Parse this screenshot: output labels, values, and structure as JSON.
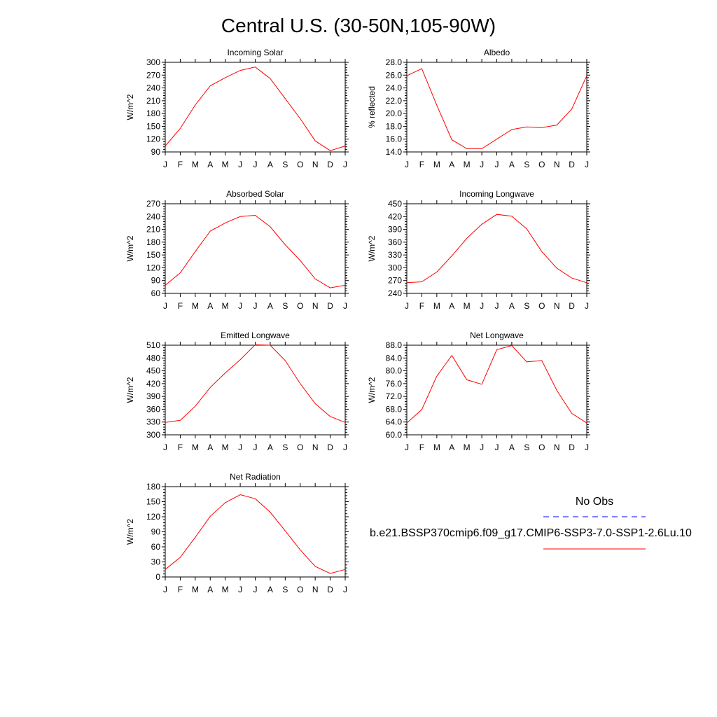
{
  "page_title": "Central U.S. (30-50N,105-90W)",
  "chart_data": [
    {
      "type": "line",
      "title": "Incoming Solar",
      "ylabel": "W/m^2",
      "xlabel": "",
      "categories": [
        "J",
        "F",
        "M",
        "A",
        "M",
        "J",
        "J",
        "A",
        "S",
        "O",
        "N",
        "D",
        "J"
      ],
      "ylim": [
        90,
        300
      ],
      "yticks": [
        "90",
        "120",
        "150",
        "180",
        "210",
        "240",
        "270",
        "300"
      ],
      "series": [
        {
          "values": [
            104,
            145,
            200,
            245,
            264,
            281,
            289,
            262,
            215,
            168,
            116,
            93,
            104
          ]
        }
      ]
    },
    {
      "type": "line",
      "title": "Albedo",
      "ylabel": "% reflected",
      "xlabel": "",
      "categories": [
        "J",
        "F",
        "M",
        "A",
        "M",
        "J",
        "J",
        "A",
        "S",
        "O",
        "N",
        "D",
        "J"
      ],
      "ylim": [
        14.0,
        28.0
      ],
      "yticks": [
        "14.0",
        "16.0",
        "18.0",
        "20.0",
        "22.0",
        "24.0",
        "26.0",
        "28.0"
      ],
      "series": [
        {
          "values": [
            25.9,
            27.0,
            21.3,
            15.9,
            14.5,
            14.5,
            16.0,
            17.5,
            17.9,
            17.8,
            18.2,
            20.7,
            25.9
          ]
        }
      ]
    },
    {
      "type": "line",
      "title": "Absorbed Solar",
      "ylabel": "W/m^2",
      "xlabel": "",
      "categories": [
        "J",
        "F",
        "M",
        "A",
        "M",
        "J",
        "J",
        "A",
        "S",
        "O",
        "N",
        "D",
        "J"
      ],
      "ylim": [
        60,
        270
      ],
      "yticks": [
        "60",
        "90",
        "120",
        "150",
        "180",
        "210",
        "240",
        "270"
      ],
      "series": [
        {
          "values": [
            79,
            108,
            158,
            206,
            225,
            240,
            243,
            216,
            174,
            137,
            94,
            73,
            79
          ]
        }
      ]
    },
    {
      "type": "line",
      "title": "Incoming Longwave",
      "ylabel": "W/m^2",
      "xlabel": "",
      "categories": [
        "J",
        "F",
        "M",
        "A",
        "M",
        "J",
        "J",
        "A",
        "S",
        "O",
        "N",
        "D",
        "J"
      ],
      "ylim": [
        240,
        450
      ],
      "yticks": [
        "240",
        "270",
        "300",
        "330",
        "360",
        "390",
        "420",
        "450"
      ],
      "series": [
        {
          "values": [
            265,
            267,
            290,
            328,
            369,
            402,
            425,
            421,
            391,
            338,
            299,
            276,
            265
          ]
        }
      ]
    },
    {
      "type": "line",
      "title": "Emitted Longwave",
      "ylabel": "W/m^2",
      "xlabel": "",
      "categories": [
        "J",
        "F",
        "M",
        "A",
        "M",
        "J",
        "J",
        "A",
        "S",
        "O",
        "N",
        "D",
        "J"
      ],
      "ylim": [
        300,
        510
      ],
      "yticks": [
        "300",
        "330",
        "360",
        "390",
        "420",
        "450",
        "480",
        "510"
      ],
      "series": [
        {
          "values": [
            329,
            334,
            367,
            411,
            445,
            476,
            511,
            510,
            474,
            420,
            373,
            343,
            329
          ]
        }
      ]
    },
    {
      "type": "line",
      "title": "Net Longwave",
      "ylabel": "W/m^2",
      "xlabel": "",
      "categories": [
        "J",
        "F",
        "M",
        "A",
        "M",
        "J",
        "J",
        "A",
        "S",
        "O",
        "N",
        "D",
        "J"
      ],
      "ylim": [
        60.0,
        88.0
      ],
      "yticks": [
        "60.0",
        "64.0",
        "68.0",
        "72.0",
        "76.0",
        "80.0",
        "84.0",
        "88.0"
      ],
      "series": [
        {
          "values": [
            63.7,
            67.9,
            78.3,
            84.8,
            77.2,
            75.8,
            86.6,
            87.9,
            82.8,
            83.2,
            73.9,
            66.7,
            63.7
          ]
        }
      ]
    },
    {
      "type": "line",
      "title": "Net Radiation",
      "ylabel": "W/m^2",
      "xlabel": "",
      "categories": [
        "J",
        "F",
        "M",
        "A",
        "M",
        "J",
        "J",
        "A",
        "S",
        "O",
        "N",
        "D",
        "J"
      ],
      "ylim": [
        0,
        180
      ],
      "yticks": [
        "0",
        "30",
        "60",
        "90",
        "120",
        "150",
        "180"
      ],
      "series": [
        {
          "values": [
            15,
            39,
            79,
            121,
            148,
            164,
            156,
            129,
            92,
            54,
            21,
            7,
            15
          ]
        }
      ]
    }
  ],
  "legend": {
    "items": [
      {
        "label": "No Obs",
        "color": "#0000ff",
        "dashed": true
      },
      {
        "label": "b.e21.BSSP370cmip6.f09_g17.CMIP6-SSP3-7.0-SSP1-2.6Lu.10",
        "color": "#ff0000",
        "dashed": false
      }
    ]
  },
  "colors": {
    "line": "#ff0000",
    "axis": "#000000",
    "obs": "#0000ff"
  }
}
